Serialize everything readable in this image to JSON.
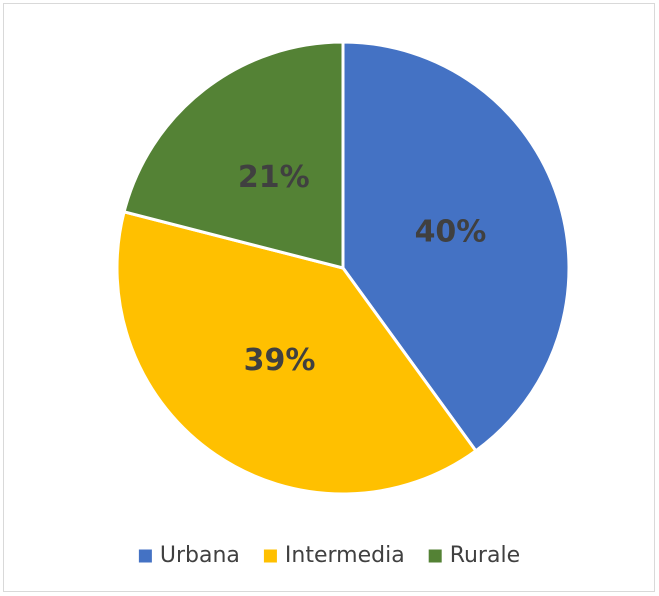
{
  "chart_data": {
    "type": "pie",
    "categories": [
      "Urbana",
      "Intermedia",
      "Rurale"
    ],
    "values": [
      40,
      39,
      21
    ],
    "value_labels": [
      "40%",
      "39%",
      "21%"
    ],
    "colors": [
      "#4472c4",
      "#ffc000",
      "#548235"
    ],
    "legend": "bottom"
  }
}
